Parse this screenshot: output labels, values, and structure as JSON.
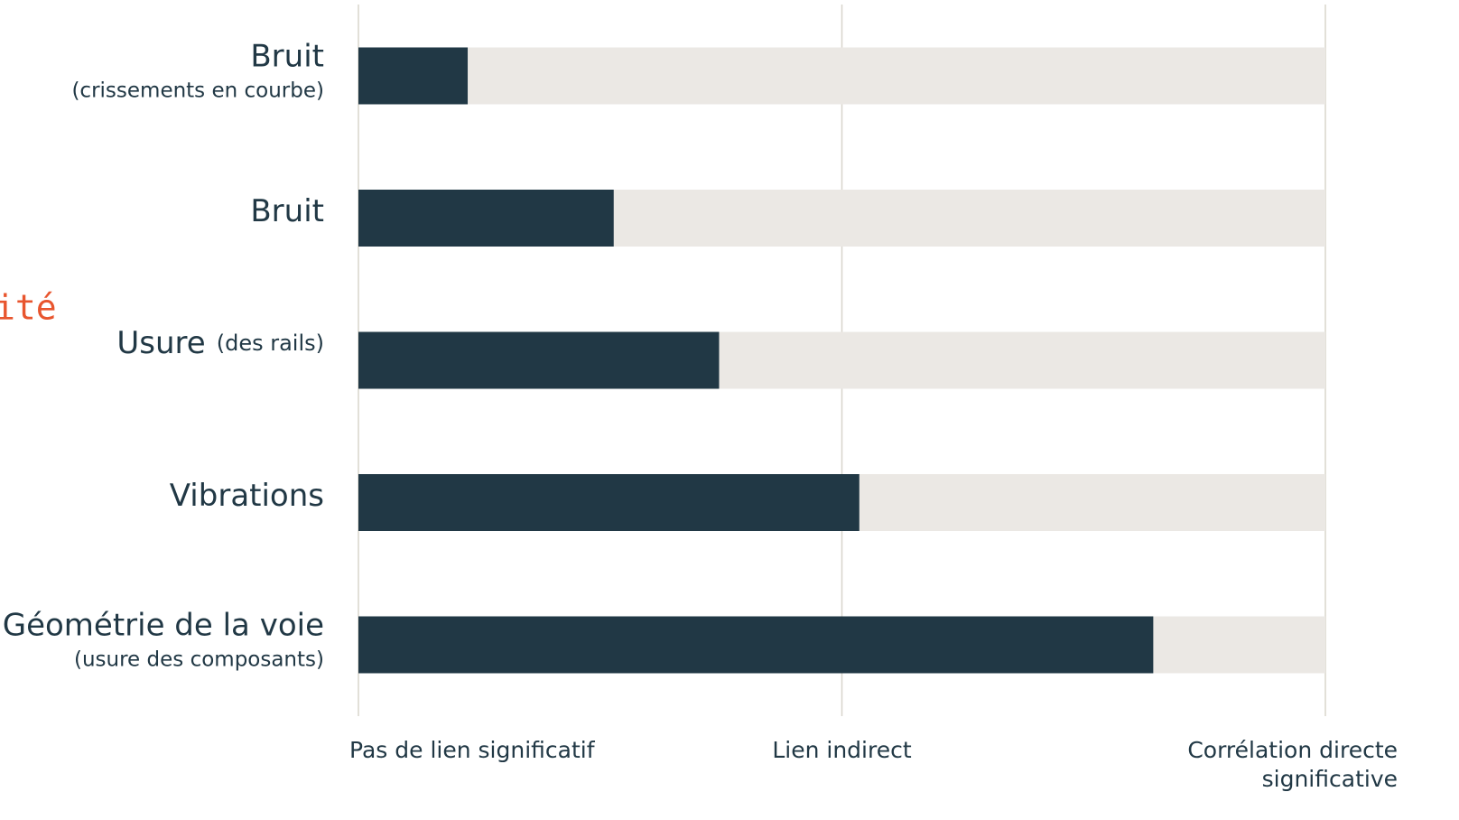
{
  "chart_data": {
    "type": "bar",
    "orientation": "horizontal",
    "annotation": "ité",
    "categories": [
      "Bruit",
      "Bruit",
      "Usure",
      "Vibrations",
      "Géométrie de la voie"
    ],
    "category_notes": [
      "(crissements en courbe)",
      null,
      "(des rails)",
      null,
      "(usure des composants)"
    ],
    "values": [
      0.113,
      0.264,
      0.373,
      0.518,
      0.822
    ],
    "color": "#213845",
    "track_color": "#ebe8e4",
    "grid_color": "#d8d5cc",
    "xlim": [
      0,
      1
    ],
    "xticks": [
      {
        "value": 0,
        "label": "Pas de lien significatif"
      },
      {
        "value": 0.5,
        "label": "Lien indirect"
      },
      {
        "value": 1,
        "label": "Corrélation directe significative"
      }
    ],
    "grid": true
  }
}
